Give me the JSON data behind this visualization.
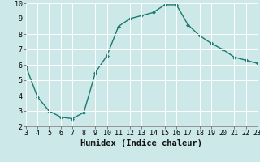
{
  "x": [
    3,
    4,
    5,
    6,
    7,
    8,
    9,
    10,
    11,
    12,
    13,
    14,
    15,
    16,
    17,
    18,
    19,
    20,
    21,
    22,
    23
  ],
  "y": [
    5.9,
    3.9,
    3.0,
    2.6,
    2.5,
    2.9,
    5.5,
    6.6,
    8.5,
    9.0,
    9.2,
    9.4,
    9.9,
    9.9,
    8.6,
    7.9,
    7.4,
    7.0,
    6.5,
    6.3,
    6.1
  ],
  "line_color": "#1a7a6e",
  "marker": "D",
  "marker_size": 2.0,
  "linewidth": 1.0,
  "xlabel": "Humidex (Indice chaleur)",
  "xlim": [
    3,
    23
  ],
  "ylim": [
    2,
    10
  ],
  "xticks": [
    3,
    4,
    5,
    6,
    7,
    8,
    9,
    10,
    11,
    12,
    13,
    14,
    15,
    16,
    17,
    18,
    19,
    20,
    21,
    22,
    23
  ],
  "yticks": [
    2,
    3,
    4,
    5,
    6,
    7,
    8,
    9,
    10
  ],
  "background_color": "#cce8e8",
  "grid_color": "#ffffff",
  "tick_fontsize": 6,
  "xlabel_fontsize": 7.5
}
